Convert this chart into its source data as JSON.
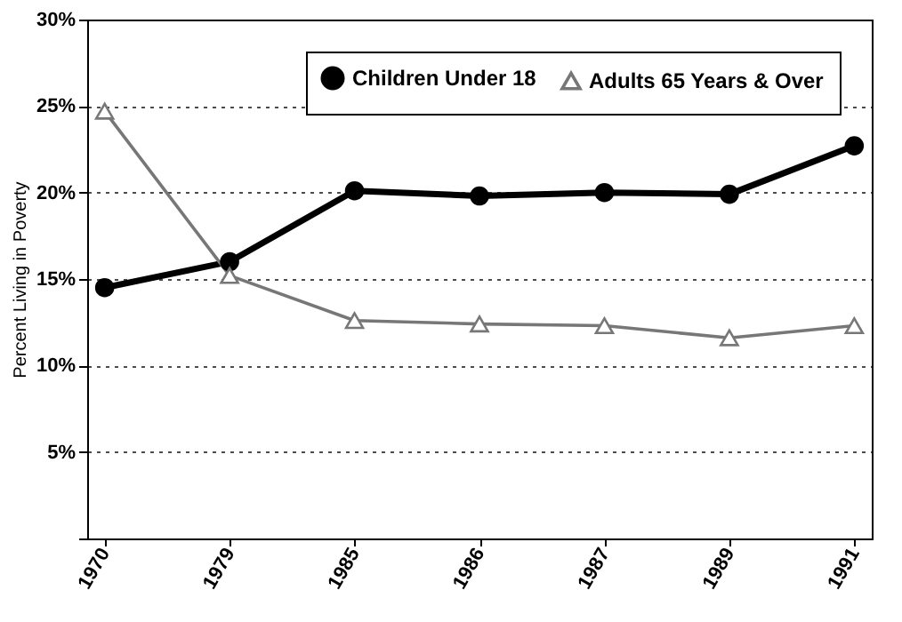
{
  "chart_data": {
    "type": "line",
    "ylabel": "Percent Living in Poverty",
    "categories": [
      "1970",
      "1979",
      "1985",
      "1986",
      "1987",
      "1989",
      "1991"
    ],
    "series": [
      {
        "name": "Children Under 18",
        "color": "#000000",
        "marker": "circle",
        "values": [
          14.5,
          16,
          20.1,
          19.8,
          20,
          19.9,
          22.7
        ]
      },
      {
        "name": "Adults 65 Years & Over",
        "color": "#777777",
        "marker": "triangle",
        "values": [
          24.7,
          15.2,
          12.6,
          12.4,
          12.3,
          11.6,
          12.3
        ]
      }
    ],
    "ylim": [
      0,
      30
    ],
    "yticks": [
      {
        "value": 0,
        "label": null
      },
      {
        "value": 5,
        "label": "5%"
      },
      {
        "value": 10,
        "label": "10%"
      },
      {
        "value": 15,
        "label": "15%"
      },
      {
        "value": 20,
        "label": "20%"
      },
      {
        "value": 25,
        "label": "25%"
      },
      {
        "value": 30,
        "label": "30%"
      }
    ],
    "grid": "y",
    "legend": "top right",
    "line_style": "solid"
  }
}
